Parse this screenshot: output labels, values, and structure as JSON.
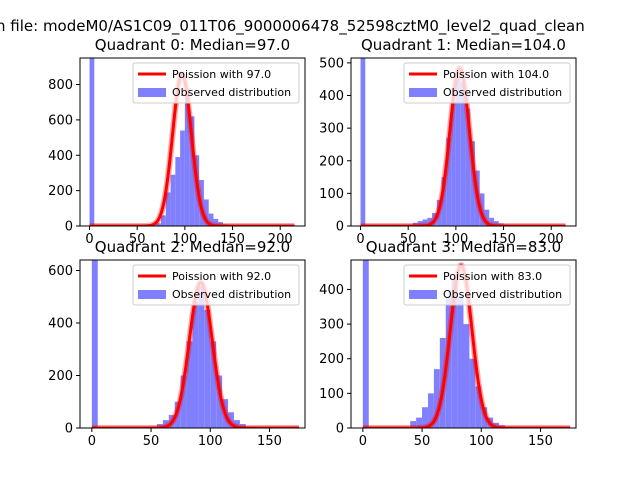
{
  "figure": {
    "suptitle": "n file: modeM0/AS1C09_011T06_9000006478_52598cztM0_level2_quad_clean",
    "colors": {
      "observed": "#8080ff",
      "poisson": "#ff0000",
      "axes": "#000000"
    }
  },
  "chart_data": [
    {
      "type": "bar",
      "title": "Quadrant 0: Median=97.0",
      "median": 97.0,
      "xlim": [
        -10,
        226
      ],
      "ylim": [
        0,
        950
      ],
      "xticks": [
        0,
        50,
        100,
        150,
        200
      ],
      "yticks": [
        0,
        200,
        400,
        600,
        800
      ],
      "legend": {
        "position": "top-right",
        "entries": [
          "Poission with 97.0",
          "Observed distribution"
        ]
      },
      "bins": {
        "x": [
          0,
          70,
          75,
          80,
          85,
          90,
          95,
          100,
          105,
          110,
          115,
          120,
          125,
          130,
          135,
          140,
          145,
          150
        ],
        "y": [
          950,
          15,
          60,
          190,
          290,
          390,
          540,
          780,
          620,
          400,
          260,
          150,
          70,
          40,
          22,
          10,
          5,
          2
        ]
      },
      "poisson": {
        "mean": 97.0,
        "peak": 860,
        "x_range": [
          0,
          215
        ]
      }
    },
    {
      "type": "bar",
      "title": "Quadrant 1: Median=104.0",
      "median": 104.0,
      "xlim": [
        -10,
        226
      ],
      "ylim": [
        0,
        515
      ],
      "xticks": [
        0,
        50,
        100,
        150,
        200
      ],
      "yticks": [
        0,
        100,
        200,
        300,
        400,
        500
      ],
      "legend": {
        "position": "top-right",
        "entries": [
          "Poission with 104.0",
          "Observed distribution"
        ]
      },
      "bins": {
        "x": [
          0,
          50,
          55,
          60,
          65,
          70,
          75,
          80,
          85,
          90,
          95,
          100,
          105,
          110,
          115,
          120,
          125,
          130,
          135,
          140,
          145,
          150,
          155
        ],
        "y": [
          515,
          5,
          10,
          15,
          20,
          25,
          40,
          80,
          150,
          270,
          380,
          460,
          440,
          360,
          260,
          170,
          100,
          50,
          25,
          15,
          8,
          5,
          3
        ]
      },
      "poisson": {
        "mean": 104.0,
        "peak": 485,
        "x_range": [
          0,
          215
        ]
      }
    },
    {
      "type": "bar",
      "title": "Quadrant 2: Median=92.0",
      "median": 92.0,
      "xlim": [
        -10,
        180
      ],
      "ylim": [
        0,
        640
      ],
      "xticks": [
        0,
        50,
        100,
        150
      ],
      "yticks": [
        0,
        200,
        400,
        600
      ],
      "legend": {
        "position": "top-right",
        "entries": [
          "Poission with 92.0",
          "Observed distribution"
        ]
      },
      "bins": {
        "x": [
          0,
          55,
          60,
          65,
          70,
          75,
          80,
          85,
          90,
          95,
          100,
          105,
          110,
          115,
          120,
          125,
          130
        ],
        "y": [
          640,
          15,
          30,
          50,
          100,
          200,
          330,
          480,
          540,
          450,
          330,
          200,
          110,
          60,
          30,
          15,
          5
        ]
      },
      "poisson": {
        "mean": 92.0,
        "peak": 555,
        "x_range": [
          0,
          175
        ]
      }
    },
    {
      "type": "bar",
      "title": "Quadrant 3: Median=83.0",
      "median": 83.0,
      "xlim": [
        -10,
        180
      ],
      "ylim": [
        0,
        485
      ],
      "xticks": [
        0,
        50,
        100,
        150
      ],
      "yticks": [
        0,
        100,
        200,
        300,
        400
      ],
      "legend": {
        "position": "top-right",
        "entries": [
          "Poission with 83.0",
          "Observed distribution"
        ]
      },
      "bins": {
        "x": [
          0,
          40,
          45,
          50,
          55,
          60,
          65,
          70,
          75,
          80,
          85,
          90,
          95,
          100,
          105,
          110,
          115
        ],
        "y": [
          485,
          20,
          30,
          60,
          100,
          170,
          260,
          380,
          430,
          380,
          300,
          200,
          120,
          60,
          30,
          15,
          8
        ]
      },
      "poisson": {
        "mean": 83.0,
        "peak": 470,
        "x_range": [
          0,
          175
        ]
      }
    }
  ]
}
